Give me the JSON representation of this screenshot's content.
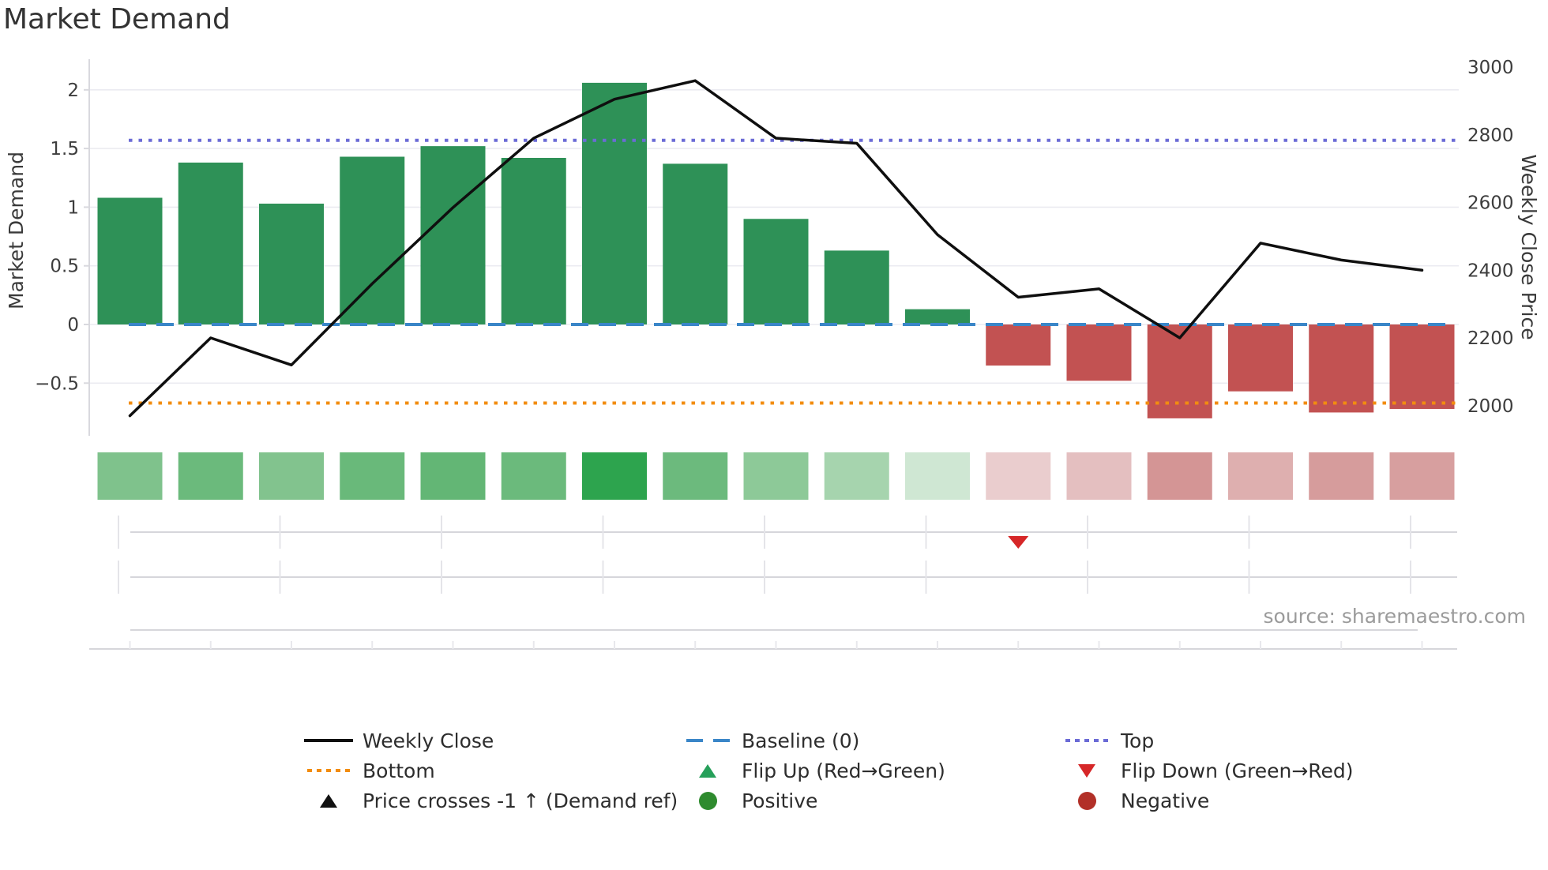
{
  "title": "Market Demand",
  "source_note": "source: sharemaestro.com",
  "axes": {
    "left": {
      "label": "Market Demand",
      "tick_labels": [
        "2",
        "1.5",
        "1",
        "0.5",
        "0",
        "−0.5"
      ],
      "tick_values": [
        2,
        1.5,
        1,
        0.5,
        0,
        -0.5
      ]
    },
    "right": {
      "label": "Weekly Close Price",
      "tick_labels": [
        "3000",
        "2800",
        "2600",
        "2400",
        "2200",
        "2000"
      ],
      "tick_values": [
        3000,
        2800,
        2600,
        2400,
        2200,
        2000
      ]
    }
  },
  "chart_data": {
    "type": "combo",
    "x_count": 17,
    "x_labels_visible": false,
    "grid": true,
    "legend_position": "bottom",
    "left_ylim": [
      -0.87,
      2.26
    ],
    "right_ylim": [
      1940,
      3025
    ],
    "series": [
      {
        "name": "Market Demand",
        "type": "bar",
        "axis": "left",
        "values": [
          1.08,
          1.38,
          1.03,
          1.43,
          1.52,
          1.42,
          2.06,
          1.37,
          0.9,
          0.63,
          0.13,
          -0.35,
          -0.48,
          -0.8,
          -0.57,
          -0.75,
          -0.72
        ],
        "positive_color": "#2e9157",
        "negative_color": "#c25252"
      },
      {
        "name": "Weekly Close",
        "type": "line",
        "axis": "right",
        "values": [
          1970,
          2200,
          2120,
          2360,
          2585,
          2790,
          2905,
          2960,
          2790,
          2775,
          2505,
          2320,
          2345,
          2200,
          2480,
          2430,
          2400
        ],
        "color": "#0f0f0f"
      }
    ],
    "reference_lines": [
      {
        "name": "Baseline (0)",
        "axis": "left",
        "value": 0,
        "style": "dashed",
        "color": "#3a86c8"
      },
      {
        "name": "Top",
        "axis": "left",
        "value": 1.57,
        "style": "dotted",
        "color": "#6b6bd6"
      },
      {
        "name": "Bottom",
        "axis": "left",
        "value": -0.67,
        "style": "dotted",
        "color": "#f28c0f"
      }
    ],
    "markers": [
      {
        "name": "Flip Down (Green→Red)",
        "shape": "triangle-down",
        "color": "#d62728",
        "x_index": 11,
        "row": 1
      }
    ],
    "heatmap_strip": [
      "#7fc28c",
      "#6bba7c",
      "#82c38e",
      "#69b97a",
      "#63b675",
      "#6bba7c",
      "#2da44e",
      "#6cba7d",
      "#8dc998",
      "#a6d4ae",
      "#cfe7d3",
      "#eacdce",
      "#e4bfc0",
      "#d49595",
      "#deafaf",
      "#d69c9c",
      "#d79f9f"
    ]
  },
  "legend": {
    "items": [
      {
        "label": "Weekly Close",
        "swatch": "line-solid",
        "color": "#0f0f0f",
        "col": 0,
        "row": 0
      },
      {
        "label": "Baseline (0)",
        "swatch": "line-dashed",
        "color": "#3a86c8",
        "col": 1,
        "row": 0
      },
      {
        "label": "Top",
        "swatch": "line-dotted",
        "color": "#6b6bd6",
        "col": 2,
        "row": 0
      },
      {
        "label": "Bottom",
        "swatch": "line-dotted",
        "color": "#f28c0f",
        "col": 0,
        "row": 1
      },
      {
        "label": "Flip Up (Red→Green)",
        "swatch": "triangle-up",
        "color": "#26a05a",
        "col": 1,
        "row": 1
      },
      {
        "label": "Flip Down (Green→Red)",
        "swatch": "triangle-down",
        "color": "#d62728",
        "col": 2,
        "row": 1
      },
      {
        "label": "Price crosses -1 ↑ (Demand ref)",
        "swatch": "triangle-up",
        "color": "#111111",
        "col": 0,
        "row": 2
      },
      {
        "label": "Positive",
        "swatch": "circle",
        "color": "#2e8b2e",
        "col": 1,
        "row": 2
      },
      {
        "label": "Negative",
        "swatch": "circle",
        "color": "#b23028",
        "col": 2,
        "row": 2
      }
    ]
  }
}
